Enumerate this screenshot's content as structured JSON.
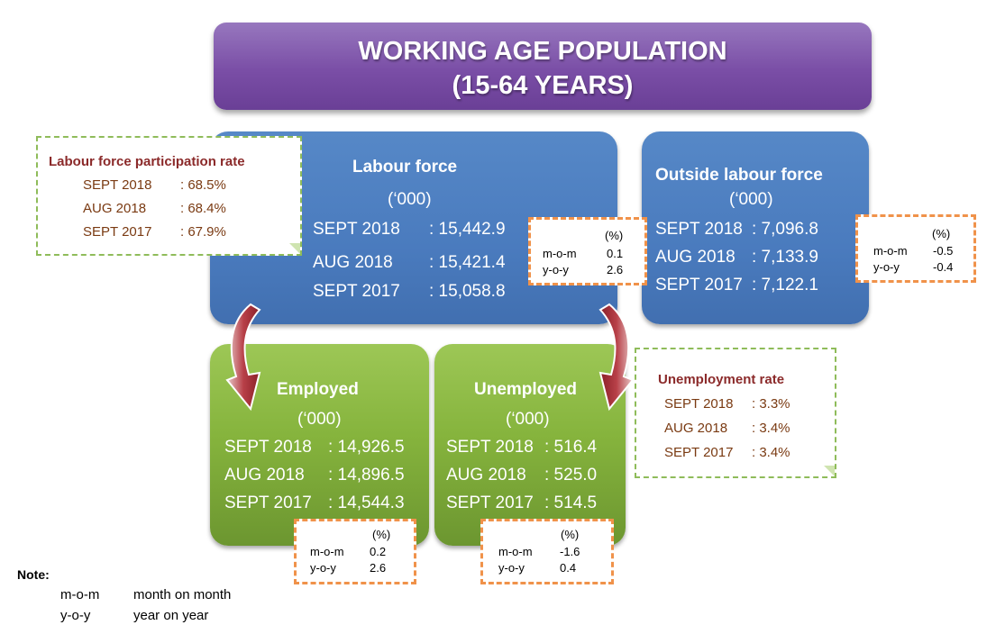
{
  "title": {
    "line1": "WORKING AGE POPULATION",
    "line2": "(15-64 YEARS)"
  },
  "labour_force": {
    "heading": "Labour force",
    "unit": "(‘000)",
    "rows": [
      {
        "label": "SEPT 2018",
        "value": ": 15,442.9"
      },
      {
        "label": "AUG 2018",
        "value": ": 15,421.4"
      },
      {
        "label": "SEPT 2017",
        "value": ": 15,058.8"
      }
    ],
    "change": {
      "pct": "(%)",
      "mom_label": "m-o-m",
      "mom": "0.1",
      "yoy_label": "y-o-y",
      "yoy": "2.6"
    }
  },
  "outside_labour_force": {
    "heading": "Outside labour force",
    "unit": "(‘000)",
    "rows": [
      {
        "label": "SEPT 2018",
        "value": ": 7,096.8"
      },
      {
        "label": "AUG 2018",
        "value": ": 7,133.9"
      },
      {
        "label": "SEPT 2017",
        "value": ": 7,122.1"
      }
    ],
    "change": {
      "pct": "(%)",
      "mom_label": "m-o-m",
      "mom": "-0.5",
      "yoy_label": "y-o-y",
      "yoy": "-0.4"
    }
  },
  "employed": {
    "heading": "Employed",
    "unit": "(‘000)",
    "rows": [
      {
        "label": "SEPT 2018",
        "value": ": 14,926.5"
      },
      {
        "label": "AUG 2018",
        "value": ": 14,896.5"
      },
      {
        "label": "SEPT 2017",
        "value": ": 14,544.3"
      }
    ],
    "change": {
      "pct": "(%)",
      "mom_label": "m-o-m",
      "mom": "0.2",
      "yoy_label": "y-o-y",
      "yoy": "2.6"
    }
  },
  "unemployed": {
    "heading": "Unemployed",
    "unit": "(‘000)",
    "rows": [
      {
        "label": "SEPT 2018",
        "value": ": 516.4"
      },
      {
        "label": "AUG 2018",
        "value": ": 525.0"
      },
      {
        "label": "SEPT 2017",
        "value": ": 514.5"
      }
    ],
    "change": {
      "pct": "(%)",
      "mom_label": "m-o-m",
      "mom": "-1.6",
      "yoy_label": "y-o-y",
      "yoy": "0.4"
    }
  },
  "lfpr": {
    "title": "Labour force participation rate",
    "rows": [
      {
        "label": "SEPT 2018",
        "value": ": 68.5%"
      },
      {
        "label": "AUG 2018",
        "value": ": 68.4%"
      },
      {
        "label": "SEPT 2017",
        "value": ": 67.9%"
      }
    ]
  },
  "unemployment_rate": {
    "title": "Unemployment rate",
    "rows": [
      {
        "label": "SEPT 2018",
        "value": ": 3.3%"
      },
      {
        "label": "AUG 2018",
        "value": ": 3.4%"
      },
      {
        "label": "SEPT 2017",
        "value": ": 3.4%"
      }
    ]
  },
  "note": {
    "label": "Note:",
    "items": [
      {
        "abbr": "m-o-m",
        "meaning": "month on month"
      },
      {
        "abbr": "y-o-y",
        "meaning": "year on year"
      }
    ]
  },
  "colors": {
    "title_purple": "#7a4ea6",
    "box_blue": "#4a7bbe",
    "box_green": "#86b43d",
    "arrow_red": "#a8303a",
    "dash_orange": "#f0924a",
    "dash_green": "#8fbc5a"
  }
}
